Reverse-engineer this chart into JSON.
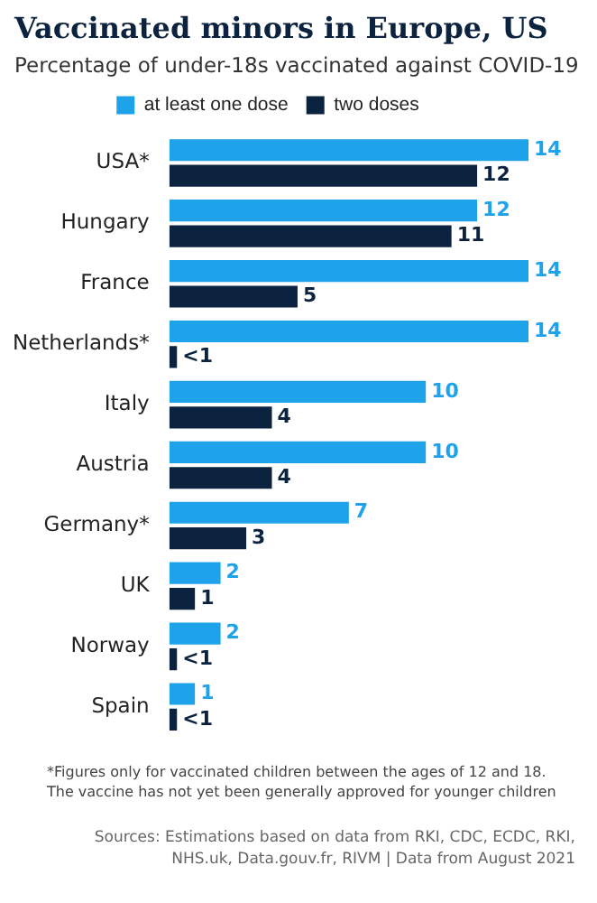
{
  "chart_data": {
    "type": "bar",
    "orientation": "horizontal",
    "title": "Vaccinated minors in Europe, US",
    "subtitle": "Percentage of under-18s vaccinated against COVID-19",
    "categories": [
      "USA*",
      "Hungary",
      "France",
      "Netherlands*",
      "Italy",
      "Austria",
      "Germany*",
      "UK",
      "Norway",
      "Spain"
    ],
    "series": [
      {
        "name": "at least one dose",
        "color": "#1ea3ea",
        "values": [
          14,
          12,
          14,
          14,
          10,
          10,
          7,
          2,
          2,
          1
        ],
        "value_labels": [
          "14",
          "12",
          "14",
          "14",
          "10",
          "10",
          "7",
          "2",
          "2",
          "1"
        ]
      },
      {
        "name": "two doses",
        "color": "#0c2340",
        "values": [
          12,
          11,
          5,
          0.3,
          4,
          4,
          3,
          1,
          0.3,
          0.3
        ],
        "value_labels": [
          "12",
          "11",
          "5",
          "<1",
          "4",
          "4",
          "3",
          "1",
          "<1",
          "<1"
        ]
      }
    ],
    "legend": "top",
    "tick_labels": "y",
    "annotations": [
      "*Figures only for vaccinated children between the ages of 12 and 18.",
      "The vaccine has not yet been generally approved for younger children",
      "Sources: Estimations based on data from RKI, CDC, ECDC, RKI, NHS.uk, Data.gouv.fr, RIVM | Data from August 2021"
    ]
  }
}
